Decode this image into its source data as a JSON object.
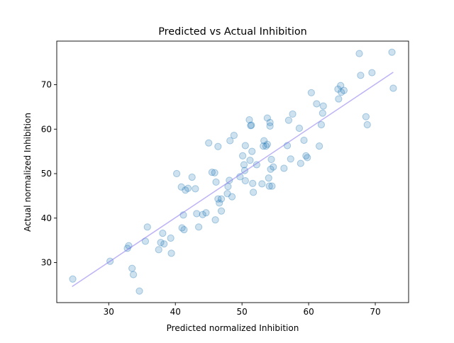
{
  "chart_data": {
    "type": "scatter",
    "title": "Predicted vs Actual Inhibition",
    "xlabel": "Predicted normalized Inhibition",
    "ylabel": "Actual normalized Inhibition",
    "xlim": [
      22.2,
      75.0
    ],
    "ylim": [
      21.0,
      79.8
    ],
    "xticks": [
      30,
      40,
      50,
      60,
      70
    ],
    "yticks": [
      30,
      40,
      50,
      60,
      70
    ],
    "grid": false,
    "legend": "none",
    "colors": {
      "points": "#1f77b4",
      "fit_line": "#7b68ee",
      "axes": "#000000"
    },
    "points": [
      [
        24.6,
        26.3
      ],
      [
        30.2,
        30.3
      ],
      [
        32.8,
        33.2
      ],
      [
        33.0,
        33.8
      ],
      [
        33.5,
        28.7
      ],
      [
        33.7,
        27.3
      ],
      [
        34.6,
        23.6
      ],
      [
        35.5,
        34.8
      ],
      [
        35.8,
        38.0
      ],
      [
        37.5,
        32.9
      ],
      [
        37.8,
        34.5
      ],
      [
        38.1,
        36.6
      ],
      [
        38.3,
        34.2
      ],
      [
        39.3,
        35.5
      ],
      [
        39.4,
        32.1
      ],
      [
        40.2,
        50.0
      ],
      [
        40.9,
        47.0
      ],
      [
        41.0,
        37.8
      ],
      [
        41.2,
        40.7
      ],
      [
        41.3,
        37.4
      ],
      [
        41.5,
        46.3
      ],
      [
        41.9,
        46.7
      ],
      [
        42.5,
        49.2
      ],
      [
        43.0,
        46.6
      ],
      [
        43.2,
        41.0
      ],
      [
        43.5,
        38.0
      ],
      [
        44.1,
        40.8
      ],
      [
        44.6,
        41.2
      ],
      [
        45.0,
        56.9
      ],
      [
        45.5,
        50.3
      ],
      [
        45.9,
        50.2
      ],
      [
        46.0,
        39.6
      ],
      [
        46.1,
        48.1
      ],
      [
        46.4,
        56.1
      ],
      [
        46.4,
        44.3
      ],
      [
        46.6,
        43.4
      ],
      [
        46.9,
        44.3
      ],
      [
        46.9,
        41.6
      ],
      [
        47.8,
        45.5
      ],
      [
        47.9,
        47.1
      ],
      [
        48.1,
        48.5
      ],
      [
        48.2,
        57.4
      ],
      [
        48.5,
        44.8
      ],
      [
        48.8,
        58.6
      ],
      [
        49.7,
        49.3
      ],
      [
        50.1,
        54.0
      ],
      [
        50.3,
        52.0
      ],
      [
        50.4,
        50.7
      ],
      [
        50.5,
        56.3
      ],
      [
        50.5,
        48.4
      ],
      [
        51.1,
        62.1
      ],
      [
        51.2,
        53.0
      ],
      [
        51.3,
        60.8
      ],
      [
        51.4,
        60.9
      ],
      [
        51.5,
        55.0
      ],
      [
        51.6,
        47.8
      ],
      [
        51.7,
        45.8
      ],
      [
        52.2,
        52.0
      ],
      [
        53.0,
        47.7
      ],
      [
        53.2,
        56.2
      ],
      [
        53.3,
        57.4
      ],
      [
        53.6,
        56.2
      ],
      [
        53.8,
        56.6
      ],
      [
        53.8,
        62.5
      ],
      [
        54.0,
        49.0
      ],
      [
        54.1,
        47.2
      ],
      [
        54.2,
        60.7
      ],
      [
        54.2,
        61.5
      ],
      [
        54.3,
        51.0
      ],
      [
        54.4,
        53.2
      ],
      [
        54.5,
        47.2
      ],
      [
        54.7,
        51.5
      ],
      [
        56.3,
        51.2
      ],
      [
        56.8,
        56.3
      ],
      [
        57.0,
        62.0
      ],
      [
        57.3,
        53.3
      ],
      [
        57.6,
        63.4
      ],
      [
        58.6,
        60.2
      ],
      [
        58.8,
        52.3
      ],
      [
        59.3,
        57.5
      ],
      [
        59.6,
        54.0
      ],
      [
        59.8,
        53.6
      ],
      [
        60.4,
        68.2
      ],
      [
        61.2,
        65.7
      ],
      [
        61.6,
        56.2
      ],
      [
        61.9,
        61.0
      ],
      [
        62.1,
        63.6
      ],
      [
        62.2,
        65.2
      ],
      [
        64.4,
        69.0
      ],
      [
        64.5,
        66.8
      ],
      [
        64.8,
        69.8
      ],
      [
        64.9,
        68.3
      ],
      [
        65.3,
        68.7
      ],
      [
        67.6,
        77.0
      ],
      [
        67.8,
        72.1
      ],
      [
        68.6,
        62.8
      ],
      [
        68.8,
        61.0
      ],
      [
        69.5,
        72.7
      ],
      [
        72.5,
        77.3
      ],
      [
        72.7,
        69.2
      ]
    ],
    "fit_line": {
      "x": [
        24.5,
        72.7
      ],
      "y": [
        24.6,
        72.8
      ]
    }
  }
}
